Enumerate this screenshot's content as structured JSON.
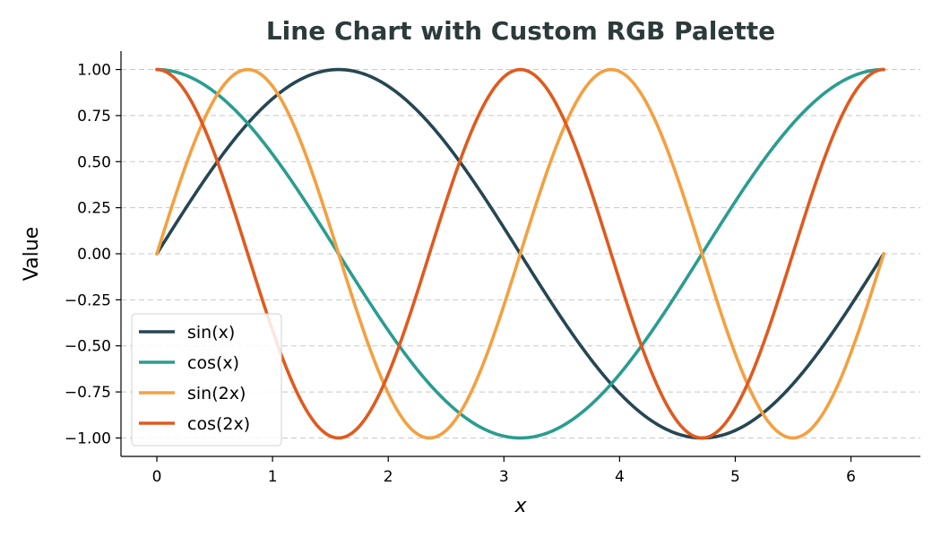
{
  "chart_data": {
    "type": "line",
    "title": "Line Chart with Custom RGB Palette",
    "xlabel": "x",
    "ylabel": "Value",
    "xlim": [
      -0.31,
      6.6
    ],
    "ylim": [
      -1.1,
      1.1
    ],
    "xticks": [
      0,
      1,
      2,
      3,
      4,
      5,
      6
    ],
    "xtick_labels": [
      "0",
      "1",
      "2",
      "3",
      "4",
      "5",
      "6"
    ],
    "yticks": [
      1.0,
      0.75,
      0.5,
      0.25,
      0.0,
      -0.25,
      -0.5,
      -0.75,
      -1.0
    ],
    "ytick_labels": [
      "1.00",
      "0.75",
      "0.50",
      "0.25",
      "0.00",
      "−0.25",
      "−0.50",
      "−0.75",
      "−1.00"
    ],
    "grid": "y-dashed",
    "legend_position": "lower-left",
    "x": [
      0.0,
      0.785,
      1.571,
      2.356,
      3.142,
      3.927,
      4.712,
      5.498,
      6.283
    ],
    "series": [
      {
        "name": "sin(x)",
        "legend_label": "sin(x)",
        "color": "#264653",
        "values": [
          0.0,
          0.707,
          1.0,
          0.707,
          0.0,
          -0.707,
          -1.0,
          -0.707,
          0.0
        ]
      },
      {
        "name": "cos(x)",
        "legend_label": "cos(x)",
        "color": "#2a9d8f",
        "values": [
          1.0,
          0.707,
          0.0,
          -0.707,
          -1.0,
          -0.707,
          0.0,
          0.707,
          1.0
        ]
      },
      {
        "name": "sin(2x)",
        "legend_label": "sin(2x)",
        "color": "#f4a040",
        "values": [
          0.0,
          1.0,
          0.0,
          -1.0,
          0.0,
          1.0,
          0.0,
          -1.0,
          0.0
        ]
      },
      {
        "name": "cos(2x)",
        "legend_label": "cos(2x)",
        "color": "#e05a1e",
        "values": [
          1.0,
          0.0,
          -1.0,
          0.0,
          1.0,
          0.0,
          -1.0,
          0.0,
          1.0
        ]
      }
    ]
  }
}
